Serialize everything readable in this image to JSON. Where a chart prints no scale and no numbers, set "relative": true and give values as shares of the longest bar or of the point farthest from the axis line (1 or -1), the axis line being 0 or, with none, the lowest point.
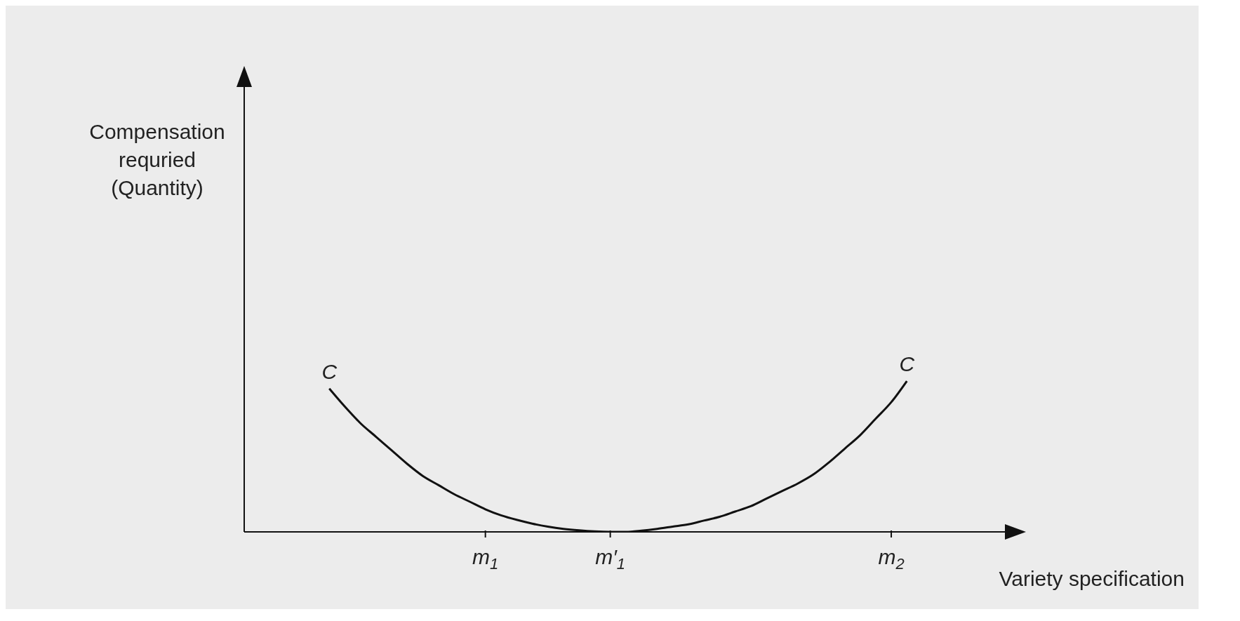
{
  "chart_data": {
    "type": "line",
    "relative": true,
    "xlabel": "Variety specification",
    "categories": [
      null,
      null,
      null,
      null,
      null,
      null,
      null,
      null,
      null,
      null,
      null,
      null,
      null,
      null,
      null,
      "m$_{1}$",
      null,
      null,
      null,
      null,
      null,
      null,
      null,
      "m′$_{1}$",
      null,
      null,
      null,
      null,
      null,
      null,
      null,
      null,
      null,
      null,
      null,
      null,
      null,
      null,
      null,
      null,
      null,
      "m$_{2}$",
      null,
      null,
      null,
      null,
      null,
      null,
      null,
      null
    ],
    "series": [
      {
        "color": "#111111",
        "values": [
          null,
          null,
          null,
          null,
          null,
          0.95,
          0.83,
          0.72,
          0.63,
          0.54,
          0.45,
          0.37,
          0.31,
          0.25,
          0.2,
          0.15,
          0.11,
          0.08,
          0.055,
          0.035,
          0.02,
          0.01,
          0.003,
          0,
          0,
          0.008,
          0.02,
          0.035,
          0.05,
          0.075,
          0.1,
          0.135,
          0.17,
          0.22,
          0.27,
          0.32,
          0.38,
          0.46,
          0.55,
          0.64,
          0.75,
          0.86,
          1,
          null,
          null,
          null,
          null,
          null,
          null,
          null
        ]
      }
    ],
    "annotations": [
      "C",
      "C",
      "Compensation requried (Quantity)"
    ],
    "marker": "none",
    "line_style": "solid"
  }
}
